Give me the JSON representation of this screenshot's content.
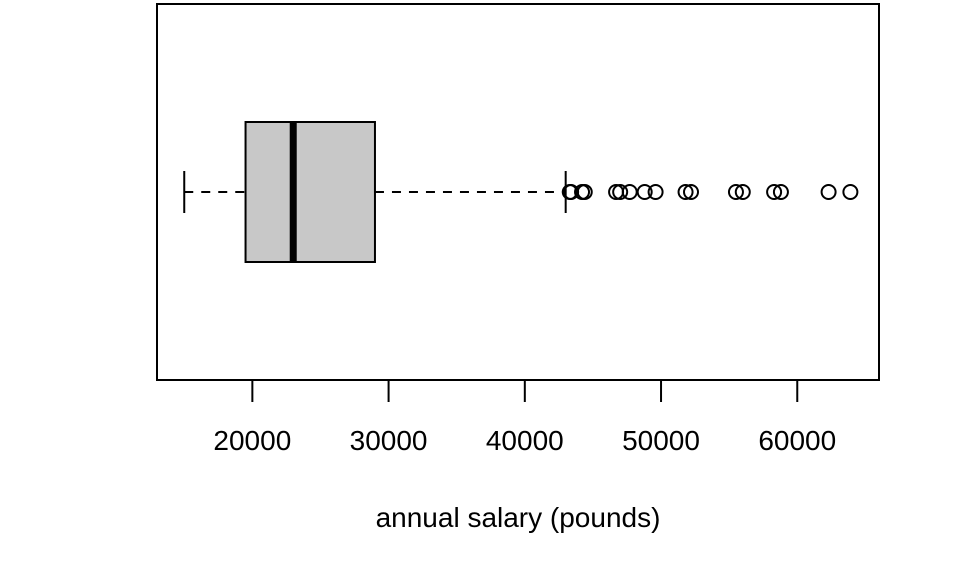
{
  "chart_data": {
    "type": "boxplot",
    "orientation": "horizontal",
    "title": "",
    "xlabel": "annual salary (pounds)",
    "ylabel": "",
    "xlim": [
      13000,
      66000
    ],
    "x_ticks": [
      20000,
      30000,
      40000,
      50000,
      60000
    ],
    "x_tick_labels": [
      "20000",
      "30000",
      "40000",
      "50000",
      "60000"
    ],
    "grid": false,
    "legend": "none",
    "box": {
      "whisker_low": 15000,
      "q1": 19500,
      "median": 23000,
      "q3": 29000,
      "whisker_high": 43000
    },
    "outliers": [
      43300,
      43400,
      44200,
      44400,
      46700,
      47000,
      47700,
      48800,
      49600,
      51800,
      52200,
      55500,
      56000,
      58300,
      58800,
      62300,
      63900
    ],
    "colors": {
      "box_fill": "#c8c8c8",
      "stroke": "#000000"
    }
  }
}
